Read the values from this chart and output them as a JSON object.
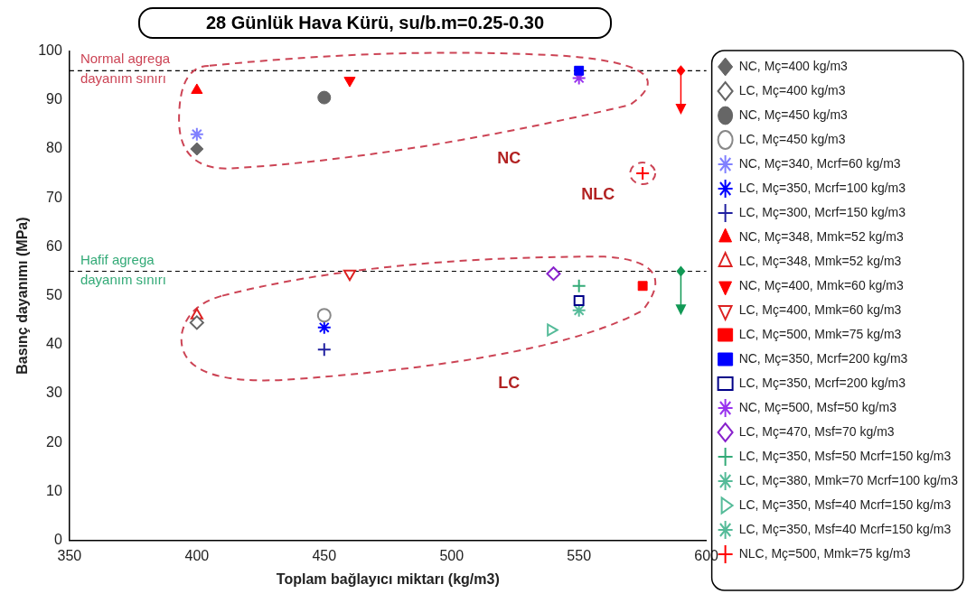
{
  "chart_data": {
    "type": "scatter",
    "title": "28 Günlük Hava Kürü, su/b.m=0.25-0.30",
    "xlabel": "Toplam bağlayıcı miktarı (kg/m3)",
    "ylabel": "Basınç dayanımı (MPa)",
    "xlim": [
      350,
      600
    ],
    "xticks": [
      350,
      400,
      450,
      500,
      550,
      600
    ],
    "ylim": [
      0,
      100
    ],
    "yticks": [
      0,
      10,
      20,
      30,
      40,
      50,
      60,
      70,
      80,
      90,
      100
    ],
    "grid": false,
    "legend": "right",
    "ref_lines": [
      {
        "axis": "y",
        "value": 96,
        "label": "Normal agrega dayanım sınırı",
        "color": "#000000",
        "line_style": "dashed"
      },
      {
        "axis": "y",
        "value": 55,
        "label": "Hafif agrega dayanım sınırı",
        "color": "#000000",
        "line_style": "dashed"
      }
    ],
    "annotations": [
      "NC",
      "LC",
      "NLC"
    ],
    "series": [
      {
        "name": "NC, Mç=400 kg/m3",
        "color": "#666666",
        "marker": "diamond",
        "x": [
          400
        ],
        "values": [
          80
        ]
      },
      {
        "name": "LC, Mç=400 kg/m3",
        "color": "#666666",
        "marker": "diamond",
        "x": [
          400
        ],
        "values": [
          44.5
        ]
      },
      {
        "name": "NC, Mç=450 kg/m3",
        "color": "#666666",
        "marker": "circle",
        "x": [
          450
        ],
        "values": [
          90.5
        ]
      },
      {
        "name": "LC, Mç=450 kg/m3",
        "color": "#888888",
        "marker": "circle",
        "x": [
          450
        ],
        "values": [
          46
        ]
      },
      {
        "name": "NC, Mç=340, Mcrf=60 kg/m3",
        "color": "#8080ff",
        "marker": "cross",
        "x": [
          400
        ],
        "values": [
          83
        ]
      },
      {
        "name": "LC, Mç=350, Mcrf=100 kg/m3",
        "color": "#0000ff",
        "marker": "cross",
        "x": [
          450
        ],
        "values": [
          43.5
        ]
      },
      {
        "name": "LC, Mç=300, Mcrf=150 kg/m3",
        "color": "#2020a0",
        "marker": "cross",
        "x": [
          450
        ],
        "values": [
          39
        ]
      },
      {
        "name": "NC, Mç=348, Mmk=52 kg/m3",
        "color": "#ff0000",
        "marker": "triangle",
        "x": [
          400
        ],
        "values": [
          92
        ]
      },
      {
        "name": "LC, Mç=348, Mmk=52 kg/m3",
        "color": "#dd2222",
        "marker": "triangle",
        "x": [
          400
        ],
        "values": [
          46
        ]
      },
      {
        "name": "NC, Mç=400, Mmk=60 kg/m3",
        "color": "#ff0000",
        "marker": "triangle",
        "x": [
          460
        ],
        "values": [
          94
        ]
      },
      {
        "name": "LC, Mç=400, Mmk=60 kg/m3",
        "color": "#dd2222",
        "marker": "triangle",
        "x": [
          460
        ],
        "values": [
          54.5
        ]
      },
      {
        "name": "LC, Mç=500, Mmk=75 kg/m3",
        "color": "#ff0000",
        "marker": "square",
        "x": [
          575
        ],
        "values": [
          52
        ]
      },
      {
        "name": "NC, Mç=350, Mcrf=200 kg/m3",
        "color": "#0000ff",
        "marker": "square",
        "x": [
          550
        ],
        "values": [
          96
        ]
      },
      {
        "name": "LC, Mç=350, Mcrf=200 kg/m3",
        "color": "#000088",
        "marker": "square",
        "x": [
          550
        ],
        "values": [
          49
        ]
      },
      {
        "name": "NC, Mç=500, Msf=50 kg/m3",
        "color": "#9933ee",
        "marker": "cross",
        "x": [
          550
        ],
        "values": [
          94.5
        ]
      },
      {
        "name": "LC, Mç=470, Msf=70 kg/m3",
        "color": "#8822cc",
        "marker": "diamond",
        "x": [
          540
        ],
        "values": [
          54.5
        ]
      },
      {
        "name": "LC, Mç=350, Msf=50 Mcrf=150 kg/m3",
        "color": "#33aa77",
        "marker": "cross",
        "x": [
          550
        ],
        "values": [
          52
        ]
      },
      {
        "name": "LC, Mç=380, Mmk=70 Mcrf=100 kg/m3",
        "color": "#55bb99",
        "marker": "cross",
        "x": [
          550
        ],
        "values": [
          47
        ]
      },
      {
        "name": "LC, Mç=350, Msf=40 Mcrf=150 kg/m3",
        "color": "#55bb99",
        "marker": "triangle",
        "x": [
          539
        ],
        "values": [
          43
        ]
      },
      {
        "name": "LC, Mç=350, Msf=40 Mcrf=150 kg/m3",
        "color": "#55bb99",
        "marker": "cross"
      },
      {
        "name": "NLC, Mç=500, Mmk=75 kg/m3",
        "color": "#ff0000",
        "marker": "cross",
        "x": [
          575
        ],
        "values": [
          75
        ]
      }
    ]
  }
}
